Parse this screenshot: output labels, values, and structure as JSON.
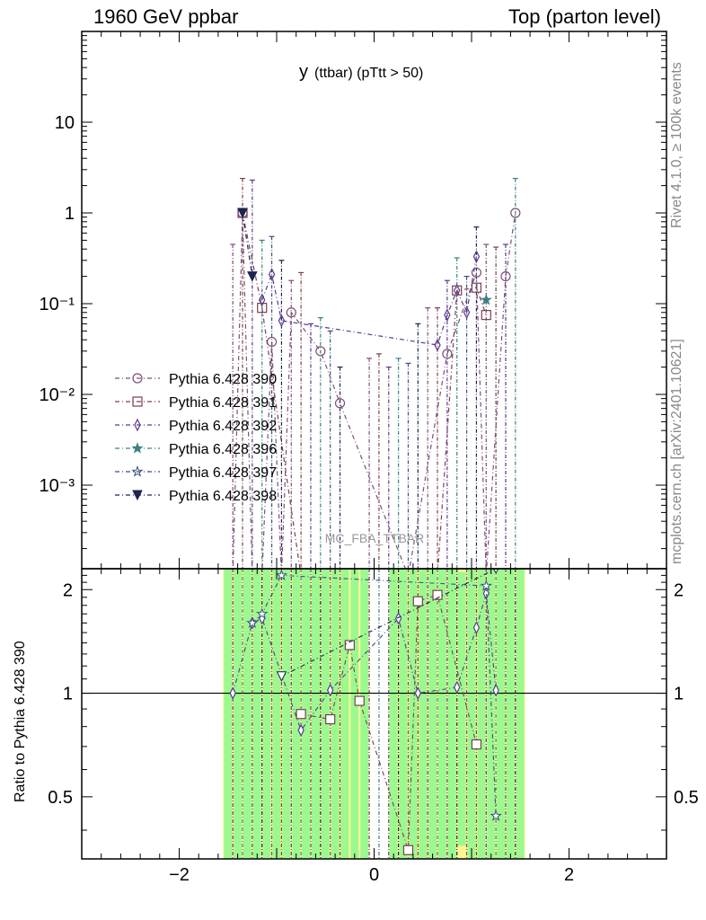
{
  "header": {
    "left": "1960 GeV ppbar",
    "right": "Top (parton level)"
  },
  "side": {
    "top": "Rivet 4.1.0, ≥ 100k events",
    "bottom": "mcplots.cern.ch [arXiv:2401.10621]"
  },
  "chart_data": {
    "type": "line",
    "title_main": "y",
    "title_sub": "(ttbar)  (pTtt > 50)",
    "watermark": "MC_FBA_TTBAR",
    "ylabel_ratio": "Ratio to Pythia 6.428 390",
    "xlim": [
      -3,
      3
    ],
    "ylim_top": [
      0.00012,
      100
    ],
    "ylim_ratio": [
      0.33,
      2.3
    ],
    "y_scale_top": "log",
    "y_scale_ratio": "log",
    "x_ticks": [
      "−2",
      "0",
      "2"
    ],
    "x_tick_values": [
      -2,
      0,
      2
    ],
    "y_ticks_top": [
      {
        "value": 10,
        "label": "10"
      },
      {
        "value": 1,
        "label": "1"
      },
      {
        "value": 0.1,
        "label": "10⁻¹"
      },
      {
        "value": 0.01,
        "label": "10⁻²"
      },
      {
        "value": 0.001,
        "label": "10⁻³"
      }
    ],
    "y_ticks_ratio": [
      {
        "value": 2,
        "label": "2"
      },
      {
        "value": 1,
        "label": "1"
      },
      {
        "value": 0.5,
        "label": "0.5"
      }
    ],
    "legend_position": "left",
    "series": [
      {
        "name": "Pythia 6.428 390",
        "color": "#7a4f78",
        "marker": "circle",
        "x": [
          -1.45,
          -1.35,
          -1.25,
          -1.15,
          -1.05,
          -0.95,
          -0.85,
          -0.55,
          -0.35,
          0.35,
          0.75,
          1.05,
          1.15,
          1.35,
          1.45
        ],
        "y": [
          0.0001,
          1.0,
          0.0001,
          0.0001,
          0.038,
          0.0001,
          0.08,
          0.03,
          0.008,
          0.0001,
          0.028,
          0.22,
          0.0001,
          0.2,
          1.0
        ],
        "ratio": []
      },
      {
        "name": "Pythia 6.428 391",
        "color": "#7a4050",
        "marker": "square",
        "x": [
          -1.35,
          -1.15,
          -0.75,
          -0.45,
          -0.25,
          -0.15,
          0.35,
          0.45,
          0.65,
          0.85,
          1.05,
          1.15
        ],
        "y": [
          1.0,
          0.09,
          0.0001,
          0.0001,
          0.0001,
          0.0001,
          0.0001,
          0.0001,
          0.0001,
          0.14,
          0.15,
          0.075
        ],
        "ratio": [
          {
            "x": -0.75,
            "y": 0.87
          },
          {
            "x": -0.45,
            "y": 0.84
          },
          {
            "x": -0.25,
            "y": 1.38
          },
          {
            "x": -0.15,
            "y": 0.95
          },
          {
            "x": 0.35,
            "y": 0.35
          },
          {
            "x": 0.45,
            "y": 1.85
          },
          {
            "x": 0.65,
            "y": 1.93
          },
          {
            "x": 1.05,
            "y": 0.71
          }
        ]
      },
      {
        "name": "Pythia 6.428 392",
        "color": "#5a3a8a",
        "marker": "diamond",
        "x": [
          -1.15,
          -1.05,
          -0.95,
          0.65,
          0.75,
          0.85,
          0.95,
          1.05
        ],
        "y": [
          0.11,
          0.21,
          0.065,
          0.035,
          0.075,
          0.14,
          0.08,
          0.33
        ],
        "ratio": [
          {
            "x": -1.45,
            "y": 1.0
          },
          {
            "x": -1.25,
            "y": 1.6
          },
          {
            "x": -1.15,
            "y": 1.65
          },
          {
            "x": -0.75,
            "y": 0.78
          },
          {
            "x": -0.45,
            "y": 1.02
          },
          {
            "x": 0.25,
            "y": 1.65
          },
          {
            "x": 0.45,
            "y": 1.0
          },
          {
            "x": 0.85,
            "y": 1.04
          },
          {
            "x": 1.05,
            "y": 1.55
          },
          {
            "x": 1.15,
            "y": 1.95
          },
          {
            "x": 1.25,
            "y": 1.02
          }
        ]
      },
      {
        "name": "Pythia 6.428 396",
        "color": "#3d8080",
        "marker": "star-filled",
        "x": [
          1.15
        ],
        "y": [
          0.11
        ],
        "ratio": []
      },
      {
        "name": "Pythia 6.428 397",
        "color": "#3a4e7e",
        "marker": "star",
        "x": [
          -1.15,
          -0.95,
          1.15,
          1.25
        ],
        "y": [
          0.0001,
          0.0001,
          0.0001,
          0.0001
        ],
        "ratio": [
          {
            "x": -1.25,
            "y": 1.6
          },
          {
            "x": -1.15,
            "y": 1.7
          },
          {
            "x": -0.95,
            "y": 2.2
          },
          {
            "x": 1.15,
            "y": 2.05
          },
          {
            "x": 1.25,
            "y": 0.44
          }
        ]
      },
      {
        "name": "Pythia 6.428 398",
        "color": "#1b2450",
        "marker": "triangle-down",
        "x": [
          -1.35,
          -1.25
        ],
        "y": [
          1.0,
          0.2
        ],
        "ratio": [
          {
            "x": -0.95,
            "y": 1.12
          },
          {
            "x": 1.25,
            "y": 2.3
          }
        ]
      }
    ],
    "error_bars_top": [
      {
        "x": -1.45,
        "hi": 0.45
      },
      {
        "x": -1.35,
        "hi": 2.4
      },
      {
        "x": -1.25,
        "hi": 2.3
      },
      {
        "x": -1.15,
        "hi": 0.5
      },
      {
        "x": -1.05,
        "hi": 0.55
      },
      {
        "x": -0.95,
        "hi": 0.3
      },
      {
        "x": -0.85,
        "hi": 0.18
      },
      {
        "x": -0.75,
        "hi": 0.22
      },
      {
        "x": -0.65,
        "hi": 0.06
      },
      {
        "x": -0.55,
        "hi": 0.07
      },
      {
        "x": -0.45,
        "hi": 0.05
      },
      {
        "x": -0.35,
        "hi": 0.02
      },
      {
        "x": -0.05,
        "hi": 0.025
      },
      {
        "x": 0.05,
        "hi": 0.028
      },
      {
        "x": 0.15,
        "hi": 0.02
      },
      {
        "x": 0.25,
        "hi": 0.025
      },
      {
        "x": 0.35,
        "hi": 0.022
      },
      {
        "x": 0.45,
        "hi": 0.06
      },
      {
        "x": 0.55,
        "hi": 0.09
      },
      {
        "x": 0.65,
        "hi": 0.09
      },
      {
        "x": 0.75,
        "hi": 0.18
      },
      {
        "x": 0.85,
        "hi": 0.32
      },
      {
        "x": 0.95,
        "hi": 0.2
      },
      {
        "x": 1.05,
        "hi": 0.7
      },
      {
        "x": 1.15,
        "hi": 0.45
      },
      {
        "x": 1.25,
        "hi": 0.42
      },
      {
        "x": 1.35,
        "hi": 0.45
      },
      {
        "x": 1.45,
        "hi": 2.4
      }
    ],
    "ratio_bands": [
      {
        "x0": -1.55,
        "x1": -1.45,
        "green": [
          0.33,
          2.3
        ],
        "yellow": [
          0.33,
          2.3
        ]
      },
      {
        "x0": -1.45,
        "x1": -1.35,
        "green": [
          0.33,
          2.3
        ],
        "yellow": [
          0.33,
          2.3
        ]
      },
      {
        "x0": -1.35,
        "x1": -1.25,
        "green": [
          0.33,
          2.3
        ],
        "yellow": [
          0.33,
          2.3
        ]
      },
      {
        "x0": -1.25,
        "x1": -1.15,
        "green": [
          0.33,
          2.3
        ],
        "yellow": [
          0.33,
          2.3
        ]
      },
      {
        "x0": -1.15,
        "x1": -1.05,
        "green": [
          0.33,
          2.3
        ],
        "yellow": [
          0.33,
          2.3
        ]
      },
      {
        "x0": -1.05,
        "x1": -0.95,
        "green": [
          0.33,
          2.3
        ],
        "yellow": [
          0.33,
          2.3
        ]
      },
      {
        "x0": -0.95,
        "x1": -0.85,
        "green": [
          0.33,
          2.3
        ],
        "yellow": [
          0.33,
          2.3
        ]
      },
      {
        "x0": -0.85,
        "x1": -0.75,
        "green": [
          0.33,
          2.3
        ],
        "yellow": [
          0.33,
          2.3
        ]
      },
      {
        "x0": -0.75,
        "x1": -0.65,
        "green": [
          0.33,
          2.3
        ],
        "yellow": [
          0.33,
          2.3
        ]
      },
      {
        "x0": -0.65,
        "x1": -0.55,
        "green": [
          0.33,
          2.3
        ],
        "yellow": [
          0.33,
          2.3
        ]
      },
      {
        "x0": -0.55,
        "x1": -0.45,
        "green": [
          0.33,
          2.3
        ],
        "yellow": [
          0.33,
          2.3
        ]
      },
      {
        "x0": -0.45,
        "x1": -0.35,
        "green": [
          0.33,
          2.3
        ],
        "yellow": [
          0.33,
          2.3
        ]
      },
      {
        "x0": -0.35,
        "x1": -0.25,
        "green": [
          0.33,
          2.3
        ],
        "yellow": [
          0.33,
          2.3
        ]
      },
      {
        "x0": -0.25,
        "x1": -0.15,
        "green": [
          0.33,
          2.3
        ],
        "yellow": [
          0.33,
          2.3
        ]
      },
      {
        "x0": -0.15,
        "x1": -0.05,
        "green": [
          0.33,
          2.3
        ],
        "yellow": [
          0.33,
          2.3
        ]
      },
      {
        "x0": 0.15,
        "x1": 0.25,
        "green": [
          0.33,
          2.3
        ],
        "yellow": [
          0.33,
          2.3
        ]
      },
      {
        "x0": 0.25,
        "x1": 0.35,
        "green": [
          0.33,
          2.3
        ],
        "yellow": [
          0.33,
          2.3
        ]
      },
      {
        "x0": 0.35,
        "x1": 0.45,
        "green": [
          0.33,
          2.3
        ],
        "yellow": [
          0.33,
          2.3
        ]
      },
      {
        "x0": 0.45,
        "x1": 0.55,
        "green": [
          0.33,
          2.3
        ],
        "yellow": [
          0.33,
          2.3
        ]
      },
      {
        "x0": 0.55,
        "x1": 0.65,
        "green": [
          0.33,
          2.3
        ],
        "yellow": [
          0.33,
          2.3
        ]
      },
      {
        "x0": 0.65,
        "x1": 0.75,
        "green": [
          0.33,
          2.3
        ],
        "yellow": [
          0.33,
          2.3
        ]
      },
      {
        "x0": 0.75,
        "x1": 0.85,
        "green": [
          0.33,
          2.3
        ],
        "yellow": [
          0.33,
          2.3
        ]
      },
      {
        "x0": 0.85,
        "x1": 0.95,
        "green": [
          0.36,
          2.25
        ],
        "yellow": [
          0.33,
          2.3
        ]
      },
      {
        "x0": 0.95,
        "x1": 1.05,
        "green": [
          0.33,
          2.3
        ],
        "yellow": [
          0.33,
          2.3
        ]
      },
      {
        "x0": 1.05,
        "x1": 1.15,
        "green": [
          0.33,
          2.3
        ],
        "yellow": [
          0.33,
          2.3
        ]
      },
      {
        "x0": 1.15,
        "x1": 1.25,
        "green": [
          0.33,
          2.3
        ],
        "yellow": [
          0.33,
          2.3
        ]
      },
      {
        "x0": 1.25,
        "x1": 1.35,
        "green": [
          0.33,
          2.3
        ],
        "yellow": [
          0.33,
          2.3
        ]
      },
      {
        "x0": 1.35,
        "x1": 1.45,
        "green": [
          0.33,
          2.3
        ],
        "yellow": [
          0.33,
          2.3
        ]
      },
      {
        "x0": 1.45,
        "x1": 1.55,
        "green": [
          0.33,
          2.3
        ],
        "yellow": [
          0.33,
          2.3
        ]
      }
    ]
  }
}
